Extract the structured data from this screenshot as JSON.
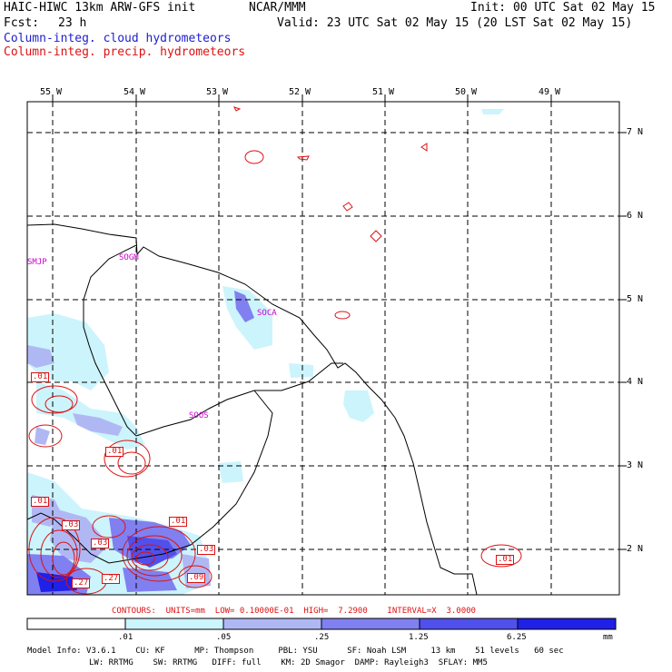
{
  "header": {
    "title": "HAIC-HIWC 13km ARW-GFS init",
    "org": "NCAR/MMM",
    "init": "Init: 00 UTC Sat 02 May 15",
    "fcst_label": "Fcst:",
    "fcst_value": "23 h",
    "valid": "Valid: 23 UTC Sat 02 May 15 (20 LST Sat 02 May 15)",
    "legend_cloud": "Column-integ. cloud hydrometeors",
    "legend_precip": "Column-integ. precip. hydrometeors"
  },
  "axes": {
    "lon_labels": [
      "55 W",
      "54 W",
      "53 W",
      "52 W",
      "51 W",
      "50 W",
      "49 W"
    ],
    "lat_labels": [
      "7 N",
      "6 N",
      "5 N",
      "4 N",
      "3 N",
      "2 N"
    ]
  },
  "stations": [
    "SMJP",
    "SOGM",
    "SOCA",
    "SOOS"
  ],
  "contour_labels": [
    ".01",
    ".01",
    ".01",
    ".03",
    ".03",
    ".01",
    ".03",
    ".27",
    ".27",
    ".09",
    ".01"
  ],
  "contour_info": "CONTOURS:  UNITS=mm  LOW= 0.10000E-01  HIGH=  7.2900    INTERVAL=X  3.0000",
  "colorbar": {
    "ticks": [
      ".01",
      ".05",
      ".25",
      "1.25",
      "6.25"
    ],
    "unit": "mm",
    "colors": [
      "#ffffff",
      "#ccf4fc",
      "#b0b8f4",
      "#8080f0",
      "#5050ec",
      "#2020e8"
    ]
  },
  "model_info": {
    "line1": "Model Info: V3.6.1    CU: KF      MP: Thompson     PBL: YSU      SF: Noah LSM     13 km    51 levels   60 sec",
    "line2": "LW: RRTMG    SW: RRTMG   DIFF: full    KM: 2D Smagor  DAMP: Rayleigh3  SFLAY: MM5"
  }
}
